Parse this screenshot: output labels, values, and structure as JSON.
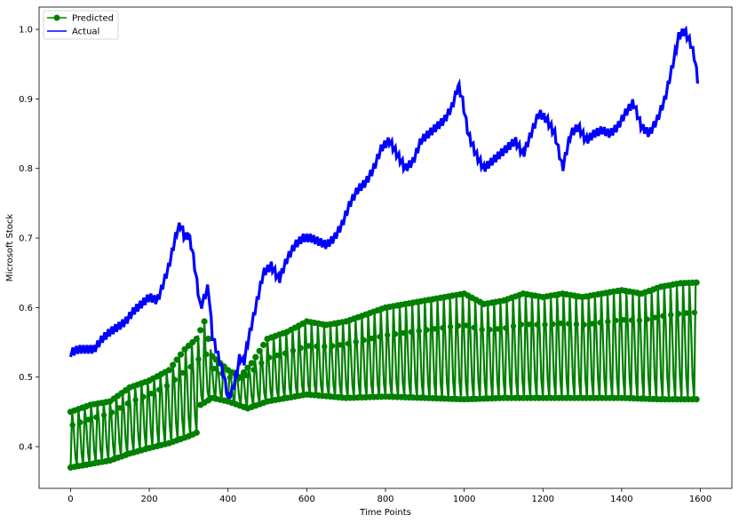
{
  "chart_data": {
    "type": "line",
    "xlabel": "Time Points",
    "ylabel": "Microsoft Stock",
    "xlim": [
      -80,
      1680
    ],
    "ylim": [
      0.34,
      1.032
    ],
    "x_ticks": [
      0,
      200,
      400,
      600,
      800,
      1000,
      1200,
      1400,
      1600
    ],
    "y_ticks": [
      0.4,
      0.5,
      0.6,
      0.7,
      0.8,
      0.9,
      1.0
    ],
    "y_tick_labels": [
      "0.4",
      "0.5",
      "0.6",
      "0.7",
      "0.8",
      "0.9",
      "1.0"
    ],
    "grid": false,
    "legend": {
      "position": "top-left"
    },
    "series": [
      {
        "name": "Predicted",
        "style": "line-with-markers",
        "color": "#008000",
        "points_lower": [
          [
            0,
            0.37
          ],
          [
            50,
            0.375
          ],
          [
            100,
            0.38
          ],
          [
            150,
            0.39
          ],
          [
            200,
            0.398
          ],
          [
            250,
            0.405
          ],
          [
            300,
            0.415
          ],
          [
            320,
            0.42
          ],
          [
            330,
            0.46
          ],
          [
            360,
            0.47
          ],
          [
            400,
            0.465
          ],
          [
            450,
            0.455
          ],
          [
            500,
            0.465
          ],
          [
            600,
            0.475
          ],
          [
            700,
            0.47
          ],
          [
            800,
            0.472
          ],
          [
            900,
            0.47
          ],
          [
            1000,
            0.468
          ],
          [
            1100,
            0.47
          ],
          [
            1200,
            0.47
          ],
          [
            1300,
            0.47
          ],
          [
            1400,
            0.47
          ],
          [
            1500,
            0.468
          ],
          [
            1590,
            0.468
          ]
        ],
        "points_upper": [
          [
            0,
            0.45
          ],
          [
            50,
            0.46
          ],
          [
            100,
            0.465
          ],
          [
            150,
            0.485
          ],
          [
            200,
            0.495
          ],
          [
            250,
            0.51
          ],
          [
            290,
            0.54
          ],
          [
            320,
            0.555
          ],
          [
            340,
            0.58
          ],
          [
            360,
            0.53
          ],
          [
            400,
            0.51
          ],
          [
            430,
            0.5
          ],
          [
            460,
            0.52
          ],
          [
            500,
            0.555
          ],
          [
            550,
            0.565
          ],
          [
            600,
            0.58
          ],
          [
            650,
            0.575
          ],
          [
            700,
            0.58
          ],
          [
            750,
            0.59
          ],
          [
            800,
            0.6
          ],
          [
            850,
            0.605
          ],
          [
            900,
            0.61
          ],
          [
            950,
            0.615
          ],
          [
            1000,
            0.62
          ],
          [
            1050,
            0.605
          ],
          [
            1100,
            0.61
          ],
          [
            1150,
            0.62
          ],
          [
            1200,
            0.615
          ],
          [
            1250,
            0.62
          ],
          [
            1300,
            0.615
          ],
          [
            1350,
            0.62
          ],
          [
            1400,
            0.625
          ],
          [
            1450,
            0.62
          ],
          [
            1500,
            0.63
          ],
          [
            1550,
            0.635
          ],
          [
            1590,
            0.636
          ]
        ],
        "points_mid": [
          [
            0,
            0.41
          ],
          [
            100,
            0.43
          ],
          [
            200,
            0.455
          ],
          [
            300,
            0.48
          ],
          [
            350,
            0.5
          ],
          [
            400,
            0.49
          ],
          [
            500,
            0.5
          ],
          [
            600,
            0.51
          ],
          [
            700,
            0.515
          ],
          [
            800,
            0.52
          ],
          [
            900,
            0.525
          ],
          [
            1000,
            0.53
          ],
          [
            1100,
            0.53
          ],
          [
            1200,
            0.535
          ],
          [
            1300,
            0.535
          ],
          [
            1400,
            0.54
          ],
          [
            1500,
            0.545
          ],
          [
            1590,
            0.55
          ]
        ]
      },
      {
        "name": "Actual",
        "style": "line",
        "color": "#0000ff",
        "points": [
          [
            0,
            0.535
          ],
          [
            20,
            0.54
          ],
          [
            40,
            0.54
          ],
          [
            60,
            0.54
          ],
          [
            80,
            0.555
          ],
          [
            100,
            0.565
          ],
          [
            120,
            0.572
          ],
          [
            140,
            0.58
          ],
          [
            160,
            0.595
          ],
          [
            180,
            0.605
          ],
          [
            200,
            0.615
          ],
          [
            220,
            0.61
          ],
          [
            230,
            0.625
          ],
          [
            250,
            0.66
          ],
          [
            270,
            0.71
          ],
          [
            280,
            0.72
          ],
          [
            290,
            0.7
          ],
          [
            300,
            0.705
          ],
          [
            310,
            0.68
          ],
          [
            330,
            0.6
          ],
          [
            350,
            0.63
          ],
          [
            360,
            0.56
          ],
          [
            380,
            0.52
          ],
          [
            390,
            0.5
          ],
          [
            400,
            0.47
          ],
          [
            410,
            0.48
          ],
          [
            420,
            0.5
          ],
          [
            430,
            0.53
          ],
          [
            440,
            0.52
          ],
          [
            450,
            0.55
          ],
          [
            470,
            0.6
          ],
          [
            490,
            0.65
          ],
          [
            510,
            0.66
          ],
          [
            530,
            0.64
          ],
          [
            550,
            0.67
          ],
          [
            570,
            0.69
          ],
          [
            590,
            0.7
          ],
          [
            610,
            0.7
          ],
          [
            630,
            0.695
          ],
          [
            650,
            0.69
          ],
          [
            670,
            0.7
          ],
          [
            690,
            0.72
          ],
          [
            710,
            0.75
          ],
          [
            730,
            0.77
          ],
          [
            750,
            0.78
          ],
          [
            770,
            0.8
          ],
          [
            790,
            0.83
          ],
          [
            810,
            0.84
          ],
          [
            830,
            0.82
          ],
          [
            850,
            0.8
          ],
          [
            870,
            0.81
          ],
          [
            890,
            0.84
          ],
          [
            910,
            0.85
          ],
          [
            930,
            0.86
          ],
          [
            950,
            0.87
          ],
          [
            970,
            0.89
          ],
          [
            985,
            0.92
          ],
          [
            995,
            0.9
          ],
          [
            1010,
            0.85
          ],
          [
            1030,
            0.82
          ],
          [
            1050,
            0.8
          ],
          [
            1070,
            0.81
          ],
          [
            1090,
            0.82
          ],
          [
            1110,
            0.83
          ],
          [
            1130,
            0.84
          ],
          [
            1150,
            0.82
          ],
          [
            1170,
            0.85
          ],
          [
            1190,
            0.88
          ],
          [
            1210,
            0.87
          ],
          [
            1230,
            0.85
          ],
          [
            1250,
            0.8
          ],
          [
            1270,
            0.85
          ],
          [
            1290,
            0.86
          ],
          [
            1310,
            0.84
          ],
          [
            1330,
            0.85
          ],
          [
            1350,
            0.855
          ],
          [
            1370,
            0.85
          ],
          [
            1390,
            0.86
          ],
          [
            1410,
            0.88
          ],
          [
            1430,
            0.895
          ],
          [
            1450,
            0.86
          ],
          [
            1470,
            0.85
          ],
          [
            1490,
            0.87
          ],
          [
            1510,
            0.9
          ],
          [
            1530,
            0.95
          ],
          [
            1545,
            0.99
          ],
          [
            1560,
            0.998
          ],
          [
            1575,
            0.98
          ],
          [
            1585,
            0.96
          ],
          [
            1595,
            0.92
          ]
        ]
      }
    ]
  }
}
